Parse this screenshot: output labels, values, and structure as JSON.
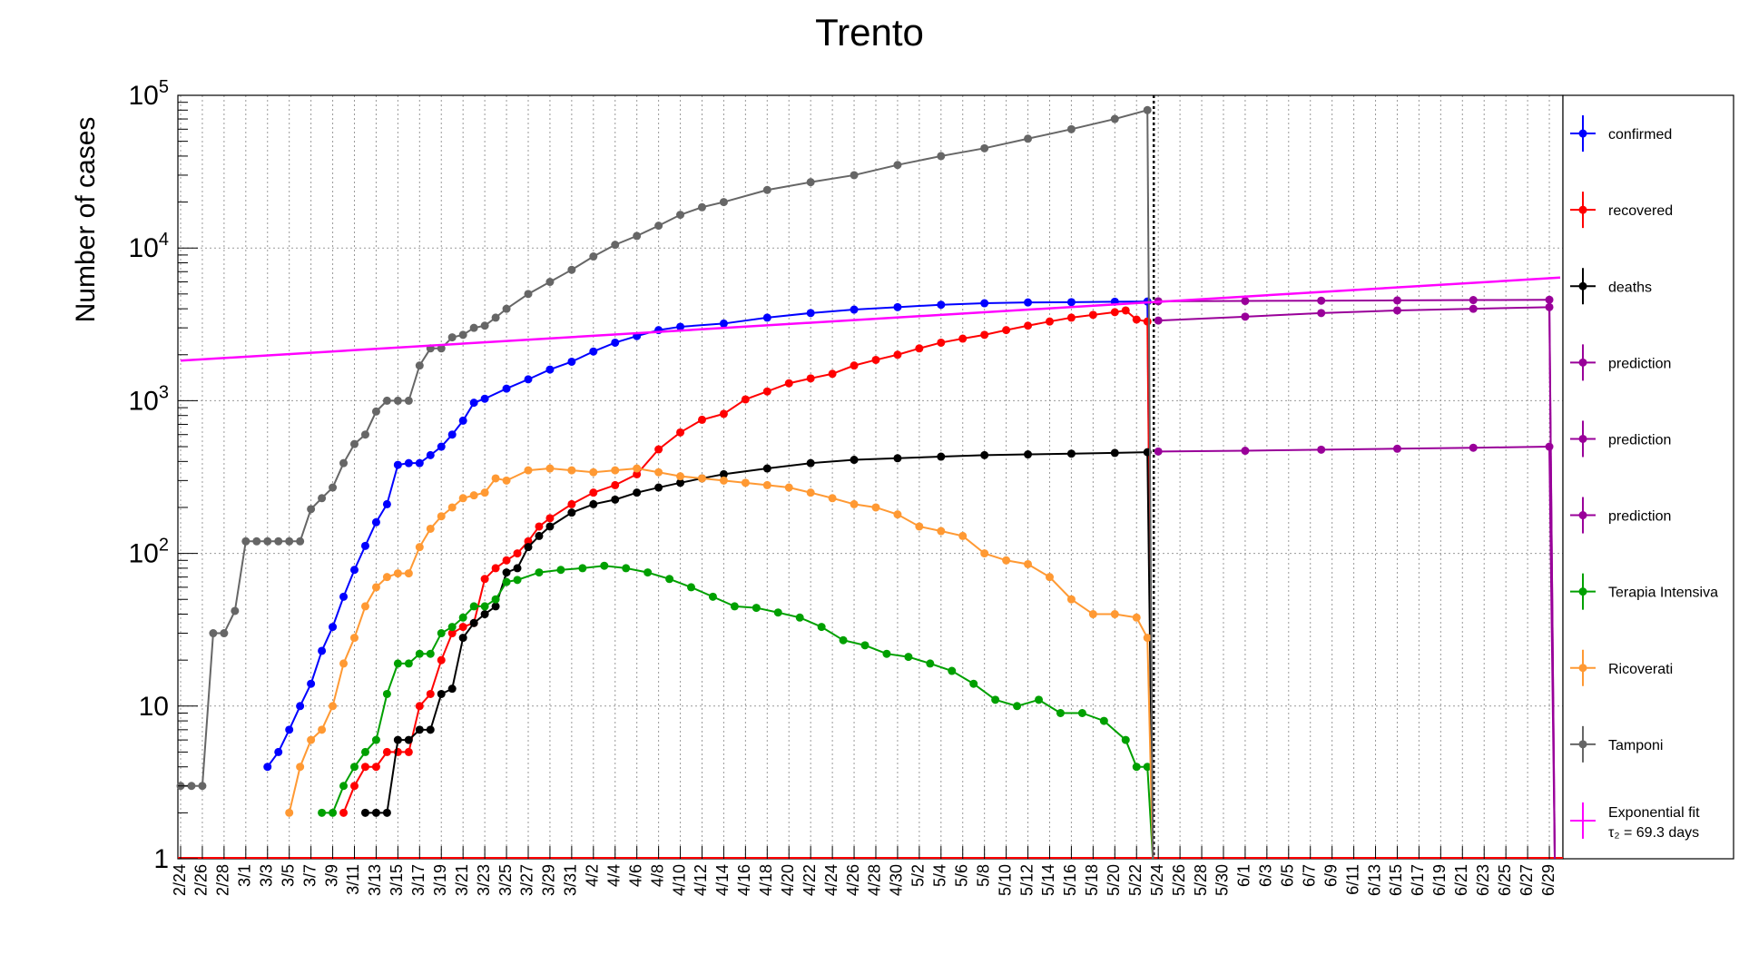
{
  "chart_data": {
    "type": "line",
    "title": "Trento",
    "xlabel": "",
    "ylabel": "Number of cases",
    "yscale": "log",
    "ylim": [
      1,
      100000
    ],
    "y_tick_labels": [
      "1",
      "10",
      "10^2",
      "10^3",
      "10^4",
      "10^5"
    ],
    "x_tick_labels": [
      "2/24",
      "2/26",
      "2/28",
      "3/1",
      "3/3",
      "3/5",
      "3/7",
      "3/9",
      "3/11",
      "3/13",
      "3/15",
      "3/17",
      "3/19",
      "3/21",
      "3/23",
      "3/25",
      "3/27",
      "3/29",
      "3/31",
      "4/2",
      "4/4",
      "4/6",
      "4/8",
      "4/10",
      "4/12",
      "4/14",
      "4/16",
      "4/18",
      "4/20",
      "4/22",
      "4/24",
      "4/26",
      "4/28",
      "4/30",
      "5/2",
      "5/4",
      "5/6",
      "5/8",
      "5/10",
      "5/12",
      "5/14",
      "5/16",
      "5/18",
      "5/20",
      "5/22",
      "5/24",
      "5/26",
      "5/28",
      "5/30",
      "6/1",
      "6/3",
      "6/5",
      "6/7",
      "6/9",
      "6/11",
      "6/13",
      "6/15",
      "6/17",
      "6/19",
      "6/21",
      "6/23",
      "6/25",
      "6/27",
      "6/29"
    ],
    "grid": true,
    "legend_position": "right",
    "vertical_marker": "5/23",
    "series": [
      {
        "name": "confirmed",
        "color": "#0000ff",
        "x": [
          "3/3",
          "3/4",
          "3/5",
          "3/6",
          "3/7",
          "3/8",
          "3/9",
          "3/10",
          "3/11",
          "3/12",
          "3/13",
          "3/14",
          "3/15",
          "3/16",
          "3/17",
          "3/18",
          "3/19",
          "3/20",
          "3/21",
          "3/22",
          "3/23",
          "3/25",
          "3/27",
          "3/29",
          "3/31",
          "4/2",
          "4/4",
          "4/6",
          "4/8",
          "4/10",
          "4/14",
          "4/18",
          "4/22",
          "4/26",
          "4/30",
          "5/4",
          "5/8",
          "5/12",
          "5/16",
          "5/20",
          "5/23"
        ],
        "values": [
          4,
          5,
          7,
          10,
          14,
          23,
          33,
          52,
          78,
          112,
          160,
          210,
          380,
          390,
          390,
          440,
          500,
          600,
          740,
          970,
          1030,
          1200,
          1380,
          1600,
          1800,
          2100,
          2400,
          2650,
          2900,
          3050,
          3200,
          3500,
          3750,
          3950,
          4100,
          4250,
          4350,
          4400,
          4420,
          4450,
          4460
        ]
      },
      {
        "name": "recovered",
        "color": "#ff0000",
        "x": [
          "3/10",
          "3/11",
          "3/12",
          "3/13",
          "3/14",
          "3/15",
          "3/16",
          "3/17",
          "3/18",
          "3/19",
          "3/20",
          "3/21",
          "3/22",
          "3/23",
          "3/24",
          "3/25",
          "3/26",
          "3/27",
          "3/28",
          "3/29",
          "3/31",
          "4/2",
          "4/4",
          "4/6",
          "4/8",
          "4/10",
          "4/12",
          "4/14",
          "4/16",
          "4/18",
          "4/20",
          "4/22",
          "4/24",
          "4/26",
          "4/28",
          "4/30",
          "5/2",
          "5/4",
          "5/6",
          "5/8",
          "5/10",
          "5/12",
          "5/14",
          "5/16",
          "5/18",
          "5/20",
          "5/21",
          "5/22",
          "5/23"
        ],
        "values": [
          2,
          3,
          4,
          4,
          5,
          5,
          5,
          10,
          12,
          20,
          30,
          33,
          35,
          68,
          80,
          90,
          100,
          120,
          150,
          170,
          210,
          250,
          280,
          330,
          480,
          620,
          750,
          820,
          1020,
          1150,
          1300,
          1400,
          1500,
          1700,
          1850,
          2000,
          2200,
          2400,
          2550,
          2700,
          2900,
          3100,
          3300,
          3500,
          3650,
          3800,
          3900,
          3400,
          3300
        ]
      },
      {
        "name": "deaths",
        "color": "#000000",
        "x": [
          "3/12",
          "3/13",
          "3/14",
          "3/15",
          "3/16",
          "3/17",
          "3/18",
          "3/19",
          "3/20",
          "3/21",
          "3/22",
          "3/23",
          "3/24",
          "3/25",
          "3/26",
          "3/27",
          "3/28",
          "3/29",
          "3/31",
          "4/2",
          "4/4",
          "4/6",
          "4/8",
          "4/10",
          "4/12",
          "4/14",
          "4/18",
          "4/22",
          "4/26",
          "4/30",
          "5/4",
          "5/8",
          "5/12",
          "5/16",
          "5/20",
          "5/23"
        ],
        "values": [
          2,
          2,
          2,
          6,
          6,
          7,
          7,
          12,
          13,
          28,
          35,
          40,
          45,
          75,
          80,
          110,
          130,
          150,
          185,
          210,
          225,
          250,
          270,
          290,
          310,
          330,
          360,
          390,
          410,
          420,
          430,
          440,
          445,
          450,
          455,
          460
        ]
      },
      {
        "name": "prediction",
        "color": "#990099",
        "x": [
          "5/24",
          "6/1",
          "6/8",
          "6/15",
          "6/22",
          "6/29"
        ],
        "values": [
          4480,
          4500,
          4520,
          4540,
          4560,
          4580
        ]
      },
      {
        "name": "prediction",
        "color": "#990099",
        "x": [
          "5/24",
          "6/1",
          "6/8",
          "6/15",
          "6/22",
          "6/29"
        ],
        "values": [
          3350,
          3550,
          3750,
          3900,
          4000,
          4100
        ]
      },
      {
        "name": "prediction",
        "color": "#990099",
        "x": [
          "5/24",
          "6/1",
          "6/8",
          "6/15",
          "6/22",
          "6/29"
        ],
        "values": [
          465,
          470,
          478,
          485,
          492,
          500
        ]
      },
      {
        "name": "Terapia Intensiva",
        "color": "#00a000",
        "x": [
          "3/8",
          "3/9",
          "3/10",
          "3/11",
          "3/12",
          "3/13",
          "3/14",
          "3/15",
          "3/16",
          "3/17",
          "3/18",
          "3/19",
          "3/20",
          "3/21",
          "3/22",
          "3/23",
          "3/24",
          "3/25",
          "3/26",
          "3/28",
          "3/30",
          "4/1",
          "4/3",
          "4/5",
          "4/7",
          "4/9",
          "4/11",
          "4/13",
          "4/15",
          "4/17",
          "4/19",
          "4/21",
          "4/23",
          "4/25",
          "4/27",
          "4/29",
          "5/1",
          "5/3",
          "5/5",
          "5/7",
          "5/9",
          "5/11",
          "5/13",
          "5/15",
          "5/17",
          "5/19",
          "5/21",
          "5/22",
          "5/23"
        ],
        "values": [
          2,
          2,
          3,
          4,
          5,
          6,
          12,
          19,
          19,
          22,
          22,
          30,
          33,
          38,
          45,
          45,
          50,
          65,
          67,
          75,
          78,
          80,
          83,
          80,
          75,
          68,
          60,
          52,
          45,
          44,
          41,
          38,
          33,
          27,
          25,
          22,
          21,
          19,
          17,
          14,
          11,
          10,
          11,
          9,
          9,
          8,
          6,
          4,
          4
        ]
      },
      {
        "name": "Ricoverati",
        "color": "#ff9933",
        "x": [
          "3/5",
          "3/6",
          "3/7",
          "3/8",
          "3/9",
          "3/10",
          "3/11",
          "3/12",
          "3/13",
          "3/14",
          "3/15",
          "3/16",
          "3/17",
          "3/18",
          "3/19",
          "3/20",
          "3/21",
          "3/22",
          "3/23",
          "3/24",
          "3/25",
          "3/27",
          "3/29",
          "3/31",
          "4/2",
          "4/4",
          "4/6",
          "4/8",
          "4/10",
          "4/12",
          "4/14",
          "4/16",
          "4/18",
          "4/20",
          "4/22",
          "4/24",
          "4/26",
          "4/28",
          "4/30",
          "5/2",
          "5/4",
          "5/6",
          "5/8",
          "5/10",
          "5/12",
          "5/14",
          "5/16",
          "5/18",
          "5/20",
          "5/22",
          "5/23"
        ],
        "values": [
          2,
          4,
          6,
          7,
          10,
          19,
          28,
          45,
          60,
          70,
          74,
          74,
          110,
          145,
          175,
          200,
          230,
          240,
          250,
          310,
          300,
          350,
          360,
          350,
          340,
          350,
          360,
          340,
          320,
          310,
          300,
          290,
          280,
          270,
          250,
          230,
          210,
          200,
          180,
          150,
          140,
          130,
          100,
          90,
          85,
          70,
          50,
          40,
          40,
          38,
          28
        ]
      },
      {
        "name": "Tamponi",
        "color": "#666666",
        "x": [
          "2/24",
          "2/25",
          "2/26",
          "2/27",
          "2/28",
          "2/29",
          "3/1",
          "3/2",
          "3/3",
          "3/4",
          "3/5",
          "3/6",
          "3/7",
          "3/8",
          "3/9",
          "3/10",
          "3/11",
          "3/12",
          "3/13",
          "3/14",
          "3/15",
          "3/16",
          "3/17",
          "3/18",
          "3/19",
          "3/20",
          "3/21",
          "3/22",
          "3/23",
          "3/24",
          "3/25",
          "3/27",
          "3/29",
          "3/31",
          "4/2",
          "4/4",
          "4/6",
          "4/8",
          "4/10",
          "4/12",
          "4/14",
          "4/18",
          "4/22",
          "4/26",
          "4/30",
          "5/4",
          "5/8",
          "5/12",
          "5/16",
          "5/20",
          "5/23"
        ],
        "values": [
          3,
          3,
          3,
          30,
          30,
          42,
          120,
          120,
          120,
          120,
          120,
          120,
          195,
          230,
          270,
          390,
          520,
          600,
          850,
          1000,
          1000,
          1000,
          1700,
          2200,
          2200,
          2600,
          2700,
          3000,
          3100,
          3500,
          4000,
          5000,
          6000,
          7200,
          8800,
          10500,
          12000,
          14000,
          16500,
          18500,
          20000,
          24000,
          27000,
          30000,
          35000,
          40000,
          45000,
          52000,
          60000,
          70000,
          80000
        ]
      },
      {
        "name": "Exponential fit",
        "color": "#ff00ff",
        "x": [
          "2/24",
          "6/30"
        ],
        "values": [
          1830,
          6400
        ]
      }
    ],
    "fit_label": "τ₂ = 69.3 days"
  }
}
